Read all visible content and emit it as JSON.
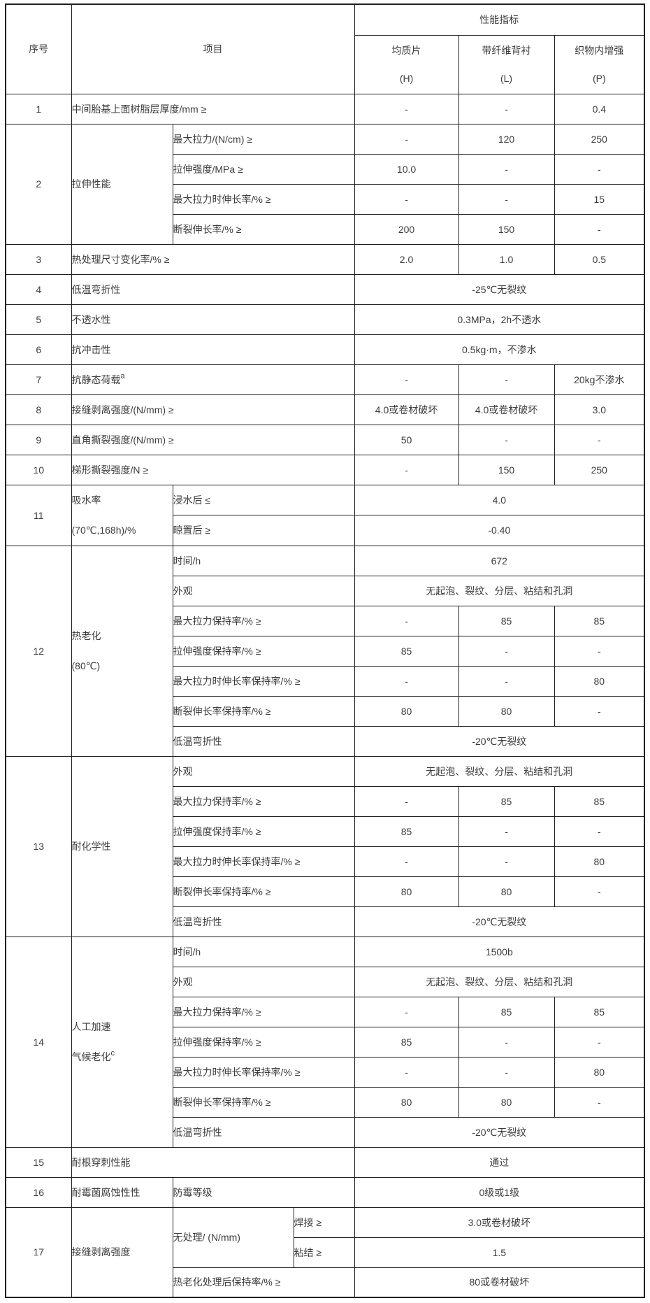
{
  "colors": {
    "background": "#ffffff",
    "border": "#1f1f1f",
    "text": "#3c3c3c"
  },
  "tbl": {
    "header": [
      {
        "cells": [
          {
            "t": "序号",
            "rs": 2,
            "cs": 1
          },
          {
            "t": "项目",
            "rs": 2,
            "cs": 3
          },
          {
            "t": "性能指标",
            "cs": 3
          }
        ]
      },
      {
        "cells": [
          {
            "lines": [
              "均质片",
              "(H)"
            ]
          },
          {
            "lines": [
              "带纤维背衬",
              "(L)"
            ]
          },
          {
            "lines": [
              "织物内增强",
              "(P)"
            ]
          }
        ]
      }
    ],
    "rows": [
      {
        "cells": [
          {
            "t": "1"
          },
          {
            "t": "中间胎基上面树脂层厚度/mm ≥",
            "cs": 3,
            "cls": "l"
          },
          {
            "t": "-"
          },
          {
            "t": "-"
          },
          {
            "t": "0.4"
          }
        ]
      },
      {
        "cells": [
          {
            "t": "2",
            "rs": 4
          },
          {
            "t": "拉伸性能",
            "rs": 4,
            "cls": "l"
          },
          {
            "t": "最大拉力/(N/cm) ≥",
            "cs": 2,
            "cls": "l"
          },
          {
            "t": "-"
          },
          {
            "t": "120"
          },
          {
            "t": "250"
          }
        ]
      },
      {
        "cells": [
          {
            "t": "拉伸强度/MPa ≥",
            "cs": 2,
            "cls": "l"
          },
          {
            "t": "10.0"
          },
          {
            "t": "-"
          },
          {
            "t": "-"
          }
        ]
      },
      {
        "cells": [
          {
            "t": "最大拉力时伸长率/% ≥",
            "cs": 2,
            "cls": "l"
          },
          {
            "t": "-"
          },
          {
            "t": "-"
          },
          {
            "t": "15"
          }
        ]
      },
      {
        "cells": [
          {
            "t": "断裂伸长率/% ≥",
            "cs": 2,
            "cls": "l"
          },
          {
            "t": "200"
          },
          {
            "t": "150"
          },
          {
            "t": "-"
          }
        ]
      },
      {
        "cells": [
          {
            "t": "3"
          },
          {
            "t": "热处理尺寸变化率/% ≥",
            "cs": 3,
            "cls": "l"
          },
          {
            "t": "2.0"
          },
          {
            "t": "1.0"
          },
          {
            "t": "0.5"
          }
        ]
      },
      {
        "cells": [
          {
            "t": "4"
          },
          {
            "t": "低温弯折性",
            "cs": 3,
            "cls": "l"
          },
          {
            "t": "-25℃无裂纹",
            "cs": 3
          }
        ]
      },
      {
        "cells": [
          {
            "t": "5"
          },
          {
            "t": "不透水性",
            "cs": 3,
            "cls": "l"
          },
          {
            "t": "0.3MPa，2h不透水",
            "cs": 3
          }
        ]
      },
      {
        "cells": [
          {
            "t": "6"
          },
          {
            "t": "抗冲击性",
            "cs": 3,
            "cls": "l"
          },
          {
            "t": "0.5kg·m，不渗水",
            "cs": 3
          }
        ]
      },
      {
        "cells": [
          {
            "t": "7"
          },
          {
            "t": "抗静态荷载",
            "sup": "a",
            "cs": 3,
            "cls": "l"
          },
          {
            "t": "-"
          },
          {
            "t": "-"
          },
          {
            "t": "20kg不渗水"
          }
        ]
      },
      {
        "cells": [
          {
            "t": "8"
          },
          {
            "t": "接缝剥离强度/(N/mm) ≥",
            "cs": 3,
            "cls": "l"
          },
          {
            "t": "4.0或卷材破坏"
          },
          {
            "t": "4.0或卷材破坏"
          },
          {
            "t": "3.0"
          }
        ]
      },
      {
        "cells": [
          {
            "t": "9"
          },
          {
            "t": "直角撕裂强度/(N/mm) ≥",
            "cs": 3,
            "cls": "l"
          },
          {
            "t": "50"
          },
          {
            "t": "-"
          },
          {
            "t": "-"
          }
        ]
      },
      {
        "cells": [
          {
            "t": "10"
          },
          {
            "t": "梯形撕裂强度/N ≥",
            "cs": 3,
            "cls": "l"
          },
          {
            "t": "-"
          },
          {
            "t": "150"
          },
          {
            "t": "250"
          }
        ]
      },
      {
        "cells": [
          {
            "t": "11",
            "rs": 2
          },
          {
            "lines": [
              "吸水率",
              "(70℃,168h)/%"
            ],
            "rs": 2,
            "cls": "l"
          },
          {
            "t": "浸水后 ≤",
            "cs": 2,
            "cls": "l"
          },
          {
            "t": "4.0",
            "cs": 3
          }
        ]
      },
      {
        "cells": [
          {
            "t": "晾置后 ≥",
            "cs": 2,
            "cls": "l"
          },
          {
            "t": "-0.40",
            "cs": 3
          }
        ]
      },
      {
        "cells": [
          {
            "t": "12",
            "rs": 7
          },
          {
            "lines": [
              "热老化",
              "(80℃)"
            ],
            "rs": 7,
            "cls": "l"
          },
          {
            "t": "时间/h",
            "cs": 2,
            "cls": "l"
          },
          {
            "t": "672",
            "cs": 3
          }
        ]
      },
      {
        "cells": [
          {
            "t": "外观",
            "cs": 2,
            "cls": "l"
          },
          {
            "t": "无起泡、裂纹、分层、粘结和孔洞",
            "cs": 3
          }
        ]
      },
      {
        "cells": [
          {
            "t": "最大拉力保持率/% ≥",
            "cs": 2,
            "cls": "l"
          },
          {
            "t": "-"
          },
          {
            "t": "85"
          },
          {
            "t": "85"
          }
        ]
      },
      {
        "cells": [
          {
            "t": "拉伸强度保持率/% ≥",
            "cs": 2,
            "cls": "l"
          },
          {
            "t": "85"
          },
          {
            "t": "-"
          },
          {
            "t": "-"
          }
        ]
      },
      {
        "cells": [
          {
            "t": "最大拉力时伸长率保持率/% ≥",
            "cs": 2,
            "cls": "l"
          },
          {
            "t": "-"
          },
          {
            "t": "-"
          },
          {
            "t": "80"
          }
        ]
      },
      {
        "cells": [
          {
            "t": "断裂伸长率保持率/% ≥",
            "cs": 2,
            "cls": "l"
          },
          {
            "t": "80"
          },
          {
            "t": "80"
          },
          {
            "t": "-"
          }
        ]
      },
      {
        "cells": [
          {
            "t": "低温弯折性",
            "cs": 2,
            "cls": "l"
          },
          {
            "t": "-20℃无裂纹",
            "cs": 3
          }
        ]
      },
      {
        "cells": [
          {
            "t": "13",
            "rs": 6
          },
          {
            "t": "耐化学性",
            "rs": 6,
            "cls": "l"
          },
          {
            "t": "外观",
            "cs": 2,
            "cls": "l"
          },
          {
            "t": "无起泡、裂纹、分层、粘结和孔洞",
            "cs": 3
          }
        ]
      },
      {
        "cells": [
          {
            "t": "最大拉力保持率/% ≥",
            "cs": 2,
            "cls": "l"
          },
          {
            "t": "-"
          },
          {
            "t": "85"
          },
          {
            "t": "85"
          }
        ]
      },
      {
        "cells": [
          {
            "t": "拉伸强度保持率/% ≥",
            "cs": 2,
            "cls": "l"
          },
          {
            "t": "85"
          },
          {
            "t": "-"
          },
          {
            "t": "-"
          }
        ]
      },
      {
        "cells": [
          {
            "t": "最大拉力时伸长率保持率/% ≥",
            "cs": 2,
            "cls": "l"
          },
          {
            "t": "-"
          },
          {
            "t": "-"
          },
          {
            "t": "80"
          }
        ]
      },
      {
        "cells": [
          {
            "t": "断裂伸长率保持率/% ≥",
            "cs": 2,
            "cls": "l"
          },
          {
            "t": "80"
          },
          {
            "t": "80"
          },
          {
            "t": "-"
          }
        ]
      },
      {
        "cells": [
          {
            "t": "低温弯折性",
            "cs": 2,
            "cls": "l"
          },
          {
            "t": "-20℃无裂纹",
            "cs": 3
          }
        ]
      },
      {
        "cells": [
          {
            "t": "14",
            "rs": 7
          },
          {
            "lines": [
              "人工加速",
              "气候老化"
            ],
            "sup": "c",
            "rs": 7,
            "cls": "l"
          },
          {
            "t": "时间/h",
            "cs": 2,
            "cls": "l"
          },
          {
            "t": "1500b",
            "cs": 3
          }
        ]
      },
      {
        "cells": [
          {
            "t": "外观",
            "cs": 2,
            "cls": "l"
          },
          {
            "t": "无起泡、裂纹、分层、粘结和孔洞",
            "cs": 3
          }
        ]
      },
      {
        "cells": [
          {
            "t": "最大拉力保持率/% ≥",
            "cs": 2,
            "cls": "l"
          },
          {
            "t": "-"
          },
          {
            "t": "85"
          },
          {
            "t": "85"
          }
        ]
      },
      {
        "cells": [
          {
            "t": "拉伸强度保持率/% ≥",
            "cs": 2,
            "cls": "l"
          },
          {
            "t": "85"
          },
          {
            "t": "-"
          },
          {
            "t": "-"
          }
        ]
      },
      {
        "cells": [
          {
            "t": "最大拉力时伸长率保持率/% ≥",
            "cs": 2,
            "cls": "l"
          },
          {
            "t": "-"
          },
          {
            "t": "-"
          },
          {
            "t": "80"
          }
        ]
      },
      {
        "cells": [
          {
            "t": "断裂伸长率保持率/% ≥",
            "cs": 2,
            "cls": "l"
          },
          {
            "t": "80"
          },
          {
            "t": "80"
          },
          {
            "t": "-"
          }
        ]
      },
      {
        "cells": [
          {
            "t": "低温弯折性",
            "cs": 2,
            "cls": "l"
          },
          {
            "t": "-20℃无裂纹",
            "cs": 3
          }
        ]
      },
      {
        "cells": [
          {
            "t": "15"
          },
          {
            "t": "耐根穿刺性能",
            "cs": 3,
            "cls": "l"
          },
          {
            "t": "通过",
            "cs": 3
          }
        ]
      },
      {
        "cells": [
          {
            "t": "16"
          },
          {
            "t": "耐霉菌腐蚀性性",
            "cls": "l"
          },
          {
            "t": "防霉等级",
            "cs": 2,
            "cls": "l"
          },
          {
            "t": "0级或1级",
            "cs": 3
          }
        ]
      },
      {
        "cells": [
          {
            "t": "17",
            "rs": 3
          },
          {
            "t": "接缝剥离强度",
            "rs": 3,
            "cls": "l"
          },
          {
            "t": "无处理/ (N/mm)",
            "rs": 2,
            "cls": "l"
          },
          {
            "t": "焊接 ≥",
            "cls": "l"
          },
          {
            "t": "3.0或卷材破坏",
            "cs": 3
          }
        ]
      },
      {
        "cells": [
          {
            "t": "粘结 ≥",
            "cls": "l"
          },
          {
            "t": "1.5",
            "cs": 3
          }
        ]
      },
      {
        "cells": [
          {
            "t": "热老化处理后保持率/% ≥",
            "cs": 2,
            "cls": "l"
          },
          {
            "t": "80或卷材破坏",
            "cs": 3
          }
        ]
      }
    ]
  }
}
